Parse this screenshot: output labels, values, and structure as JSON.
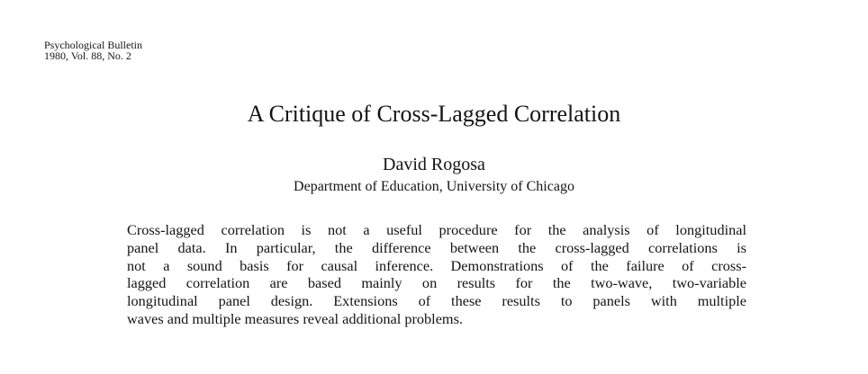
{
  "journal": {
    "name": "Psychological Bulletin",
    "issue": "1980, Vol. 88, No. 2"
  },
  "title": "A Critique of Cross-Lagged Correlation",
  "author": "David Rogosa",
  "affiliation": "Department of Education, University of Chicago",
  "abstract_lines": [
    "Cross-lagged correlation is not a useful procedure for the analysis of longitudinal",
    "panel data. In particular, the difference between the cross-lagged correlations is",
    "not a sound basis for causal inference. Demonstrations of the failure of cross-",
    "lagged correlation are based mainly on results for the two-wave, two-variable",
    "longitudinal panel design. Extensions of these results to panels with multiple",
    "waves and multiple measures reveal additional problems."
  ]
}
